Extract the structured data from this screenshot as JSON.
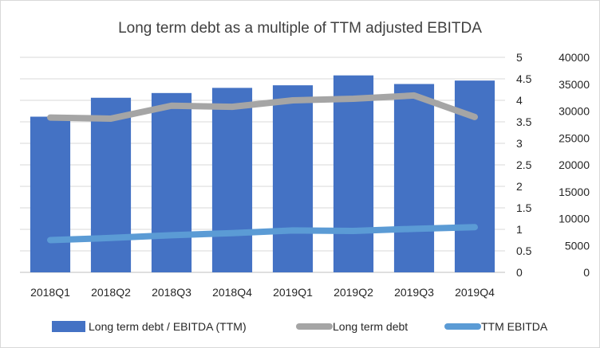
{
  "chart_data": {
    "type": "bar",
    "title": "Long term debt as a multiple of TTM adjusted EBITDA",
    "categories": [
      "2018Q1",
      "2018Q2",
      "2018Q3",
      "2018Q4",
      "2019Q1",
      "2019Q2",
      "2019Q3",
      "2019Q4"
    ],
    "series": [
      {
        "name": "Long term debt / EBITDA (TTM)",
        "type": "bar",
        "axis": "right-inner",
        "color": "#4472c4",
        "values": [
          3.62,
          4.06,
          4.17,
          4.29,
          4.35,
          4.58,
          4.38,
          4.46
        ]
      },
      {
        "name": "Long term debt",
        "type": "line",
        "axis": "right-outer",
        "color": "#a5a5a5",
        "values": [
          28800,
          28600,
          31000,
          30800,
          32000,
          32300,
          32900,
          28900
        ]
      },
      {
        "name": "TTM EBITDA",
        "type": "line",
        "axis": "right-outer",
        "color": "#5b9bd5",
        "values": [
          6000,
          6400,
          6900,
          7300,
          7800,
          7700,
          8100,
          8400
        ]
      }
    ],
    "y_inner": {
      "ylim": [
        0,
        5
      ],
      "ticks": [
        "0",
        "0.5",
        "1",
        "1.5",
        "2",
        "2.5",
        "3",
        "3.5",
        "4",
        "4.5",
        "5"
      ]
    },
    "y_outer": {
      "ylim": [
        0,
        40000
      ],
      "ticks": [
        "0",
        "5000",
        "10000",
        "15000",
        "20000",
        "25000",
        "30000",
        "35000",
        "40000"
      ]
    },
    "grid": true,
    "legend_position": "bottom"
  }
}
